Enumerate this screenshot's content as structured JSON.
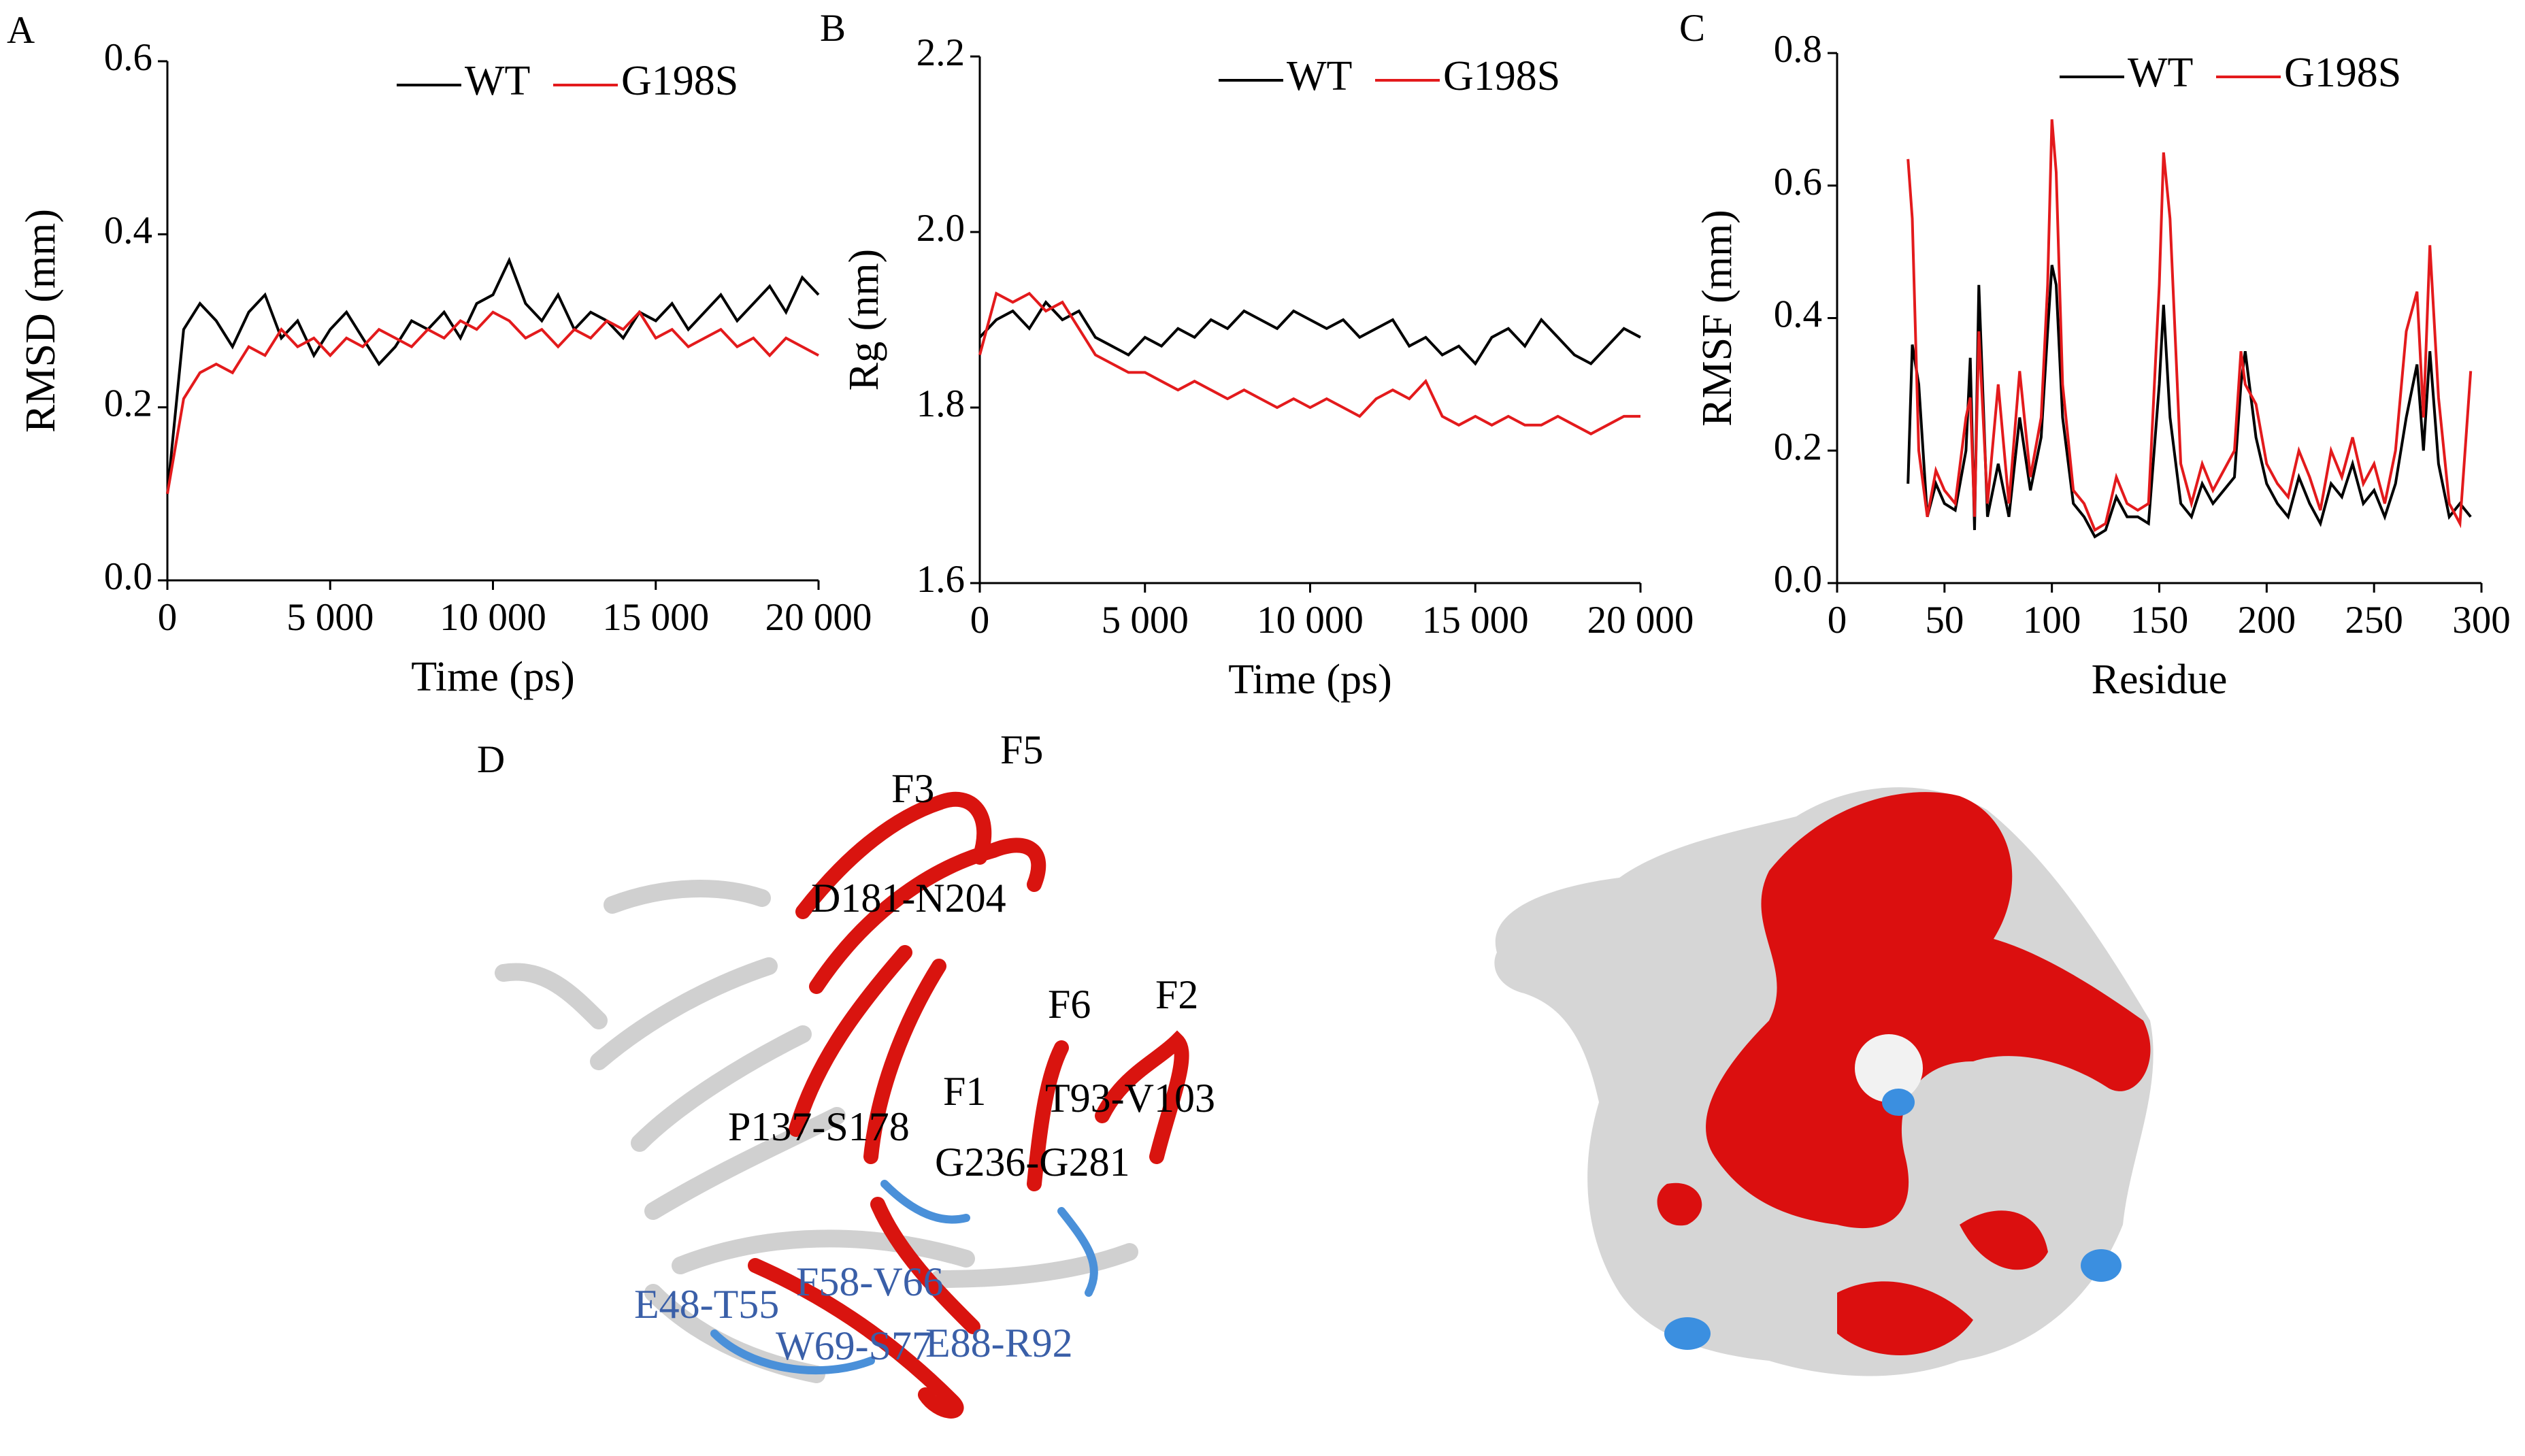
{
  "chart_data": [
    {
      "type": "line",
      "panel_label": "A",
      "x_label": "Time (ps)",
      "y_label": "RMSD (mm)",
      "x": [
        0,
        500,
        1000,
        1500,
        2000,
        2500,
        3000,
        3500,
        4000,
        4500,
        5000,
        5500,
        6000,
        6500,
        7000,
        7500,
        8000,
        8500,
        9000,
        9500,
        10000,
        10500,
        11000,
        11500,
        12000,
        12500,
        13000,
        13500,
        14000,
        14500,
        15000,
        15500,
        16000,
        16500,
        17000,
        17500,
        18000,
        18500,
        19000,
        19500,
        20000
      ],
      "series": [
        {
          "name": "WT",
          "color": "#000000",
          "values": [
            0.1,
            0.29,
            0.32,
            0.3,
            0.27,
            0.31,
            0.33,
            0.28,
            0.3,
            0.26,
            0.29,
            0.31,
            0.28,
            0.25,
            0.27,
            0.3,
            0.29,
            0.31,
            0.28,
            0.32,
            0.33,
            0.37,
            0.32,
            0.3,
            0.33,
            0.29,
            0.31,
            0.3,
            0.28,
            0.31,
            0.3,
            0.32,
            0.29,
            0.31,
            0.33,
            0.3,
            0.32,
            0.34,
            0.31,
            0.35,
            0.33
          ]
        },
        {
          "name": "G198S",
          "color": "#e31a1c",
          "values": [
            0.1,
            0.21,
            0.24,
            0.25,
            0.24,
            0.27,
            0.26,
            0.29,
            0.27,
            0.28,
            0.26,
            0.28,
            0.27,
            0.29,
            0.28,
            0.27,
            0.29,
            0.28,
            0.3,
            0.29,
            0.31,
            0.3,
            0.28,
            0.29,
            0.27,
            0.29,
            0.28,
            0.3,
            0.29,
            0.31,
            0.28,
            0.29,
            0.27,
            0.28,
            0.29,
            0.27,
            0.28,
            0.26,
            0.28,
            0.27,
            0.26
          ]
        }
      ],
      "xlim": [
        0,
        20000
      ],
      "xticks": [
        0,
        {
          "value": 5000,
          "label": "5 000"
        },
        {
          "value": 10000,
          "label": "10 000"
        },
        {
          "value": 15000,
          "label": "15 000"
        },
        {
          "value": 20000,
          "label": "20 000"
        }
      ],
      "ylim": [
        0,
        0.6
      ],
      "yticks": [
        {
          "value": 0,
          "label": "0.0"
        },
        0.2,
        0.4,
        0.6
      ],
      "legend": "upper right"
    },
    {
      "type": "line",
      "panel_label": "B",
      "x_label": "Time (ps)",
      "y_label": "Rg (nm)",
      "x": [
        0,
        500,
        1000,
        1500,
        2000,
        2500,
        3000,
        3500,
        4000,
        4500,
        5000,
        5500,
        6000,
        6500,
        7000,
        7500,
        8000,
        8500,
        9000,
        9500,
        10000,
        10500,
        11000,
        11500,
        12000,
        12500,
        13000,
        13500,
        14000,
        14500,
        15000,
        15500,
        16000,
        16500,
        17000,
        17500,
        18000,
        18500,
        19000,
        19500,
        20000
      ],
      "series": [
        {
          "name": "WT",
          "color": "#000000",
          "values": [
            1.88,
            1.9,
            1.91,
            1.89,
            1.92,
            1.9,
            1.91,
            1.88,
            1.87,
            1.86,
            1.88,
            1.87,
            1.89,
            1.88,
            1.9,
            1.89,
            1.91,
            1.9,
            1.89,
            1.91,
            1.9,
            1.89,
            1.9,
            1.88,
            1.89,
            1.9,
            1.87,
            1.88,
            1.86,
            1.87,
            1.85,
            1.88,
            1.89,
            1.87,
            1.9,
            1.88,
            1.86,
            1.85,
            1.87,
            1.89,
            1.88
          ]
        },
        {
          "name": "G198S",
          "color": "#e31a1c",
          "values": [
            1.86,
            1.93,
            1.92,
            1.93,
            1.91,
            1.92,
            1.89,
            1.86,
            1.85,
            1.84,
            1.84,
            1.83,
            1.82,
            1.83,
            1.82,
            1.81,
            1.82,
            1.81,
            1.8,
            1.81,
            1.8,
            1.81,
            1.8,
            1.79,
            1.81,
            1.82,
            1.81,
            1.83,
            1.79,
            1.78,
            1.79,
            1.78,
            1.79,
            1.78,
            1.78,
            1.79,
            1.78,
            1.77,
            1.78,
            1.79,
            1.79
          ]
        }
      ],
      "xlim": [
        0,
        20000
      ],
      "xticks": [
        0,
        {
          "value": 5000,
          "label": "5 000"
        },
        {
          "value": 10000,
          "label": "10 000"
        },
        {
          "value": 15000,
          "label": "15 000"
        },
        {
          "value": 20000,
          "label": "20 000"
        }
      ],
      "ylim": [
        1.6,
        2.2
      ],
      "yticks": [
        1.6,
        1.8,
        {
          "value": 2,
          "label": "2.0"
        },
        2.2
      ],
      "legend": "upper right"
    },
    {
      "type": "line",
      "panel_label": "C",
      "x_label": "Residue",
      "y_label": "RMSF (mm)",
      "x": [
        33,
        35,
        38,
        42,
        46,
        50,
        55,
        60,
        62,
        64,
        66,
        70,
        75,
        80,
        85,
        90,
        95,
        98,
        100,
        102,
        105,
        110,
        115,
        120,
        125,
        130,
        135,
        140,
        145,
        150,
        152,
        155,
        160,
        165,
        170,
        175,
        180,
        185,
        188,
        190,
        195,
        200,
        205,
        210,
        215,
        220,
        225,
        230,
        235,
        240,
        245,
        250,
        255,
        260,
        265,
        270,
        273,
        276,
        280,
        285,
        290,
        295
      ],
      "series": [
        {
          "name": "WT",
          "color": "#000000",
          "values": [
            0.15,
            0.36,
            0.3,
            0.1,
            0.15,
            0.12,
            0.11,
            0.2,
            0.34,
            0.08,
            0.45,
            0.1,
            0.18,
            0.1,
            0.25,
            0.14,
            0.22,
            0.38,
            0.48,
            0.45,
            0.25,
            0.12,
            0.1,
            0.07,
            0.08,
            0.13,
            0.1,
            0.1,
            0.09,
            0.3,
            0.42,
            0.25,
            0.12,
            0.1,
            0.15,
            0.12,
            0.14,
            0.16,
            0.3,
            0.35,
            0.22,
            0.15,
            0.12,
            0.1,
            0.16,
            0.12,
            0.09,
            0.15,
            0.13,
            0.18,
            0.12,
            0.14,
            0.1,
            0.15,
            0.25,
            0.33,
            0.2,
            0.35,
            0.18,
            0.1,
            0.12,
            0.1
          ]
        },
        {
          "name": "G198S",
          "color": "#e31a1c",
          "values": [
            0.64,
            0.55,
            0.2,
            0.1,
            0.17,
            0.14,
            0.12,
            0.25,
            0.28,
            0.1,
            0.38,
            0.12,
            0.3,
            0.12,
            0.32,
            0.16,
            0.25,
            0.45,
            0.7,
            0.62,
            0.3,
            0.14,
            0.12,
            0.08,
            0.09,
            0.16,
            0.12,
            0.11,
            0.12,
            0.45,
            0.65,
            0.55,
            0.18,
            0.12,
            0.18,
            0.14,
            0.17,
            0.2,
            0.35,
            0.3,
            0.27,
            0.18,
            0.15,
            0.13,
            0.2,
            0.16,
            0.11,
            0.2,
            0.16,
            0.22,
            0.15,
            0.18,
            0.12,
            0.2,
            0.38,
            0.44,
            0.25,
            0.51,
            0.28,
            0.12,
            0.09,
            0.32
          ]
        }
      ],
      "xlim": [
        0,
        300
      ],
      "xticks": [
        0,
        50,
        100,
        150,
        200,
        250,
        300
      ],
      "ylim": [
        0,
        0.8
      ],
      "yticks": [
        {
          "value": 0,
          "label": "0.0"
        },
        0.2,
        0.4,
        0.6,
        0.8
      ],
      "legend": "upper right"
    }
  ],
  "panel_d": {
    "panel_label": "D",
    "labels_black": [
      "F3",
      "F5",
      "D181-N204",
      "F6",
      "F2",
      "F1",
      "T93-V103",
      "P137-S178",
      "G236-G281"
    ],
    "labels_blue": [
      "E48-T55",
      "F58-V66",
      "W69-S77",
      "E88-R92"
    ]
  }
}
